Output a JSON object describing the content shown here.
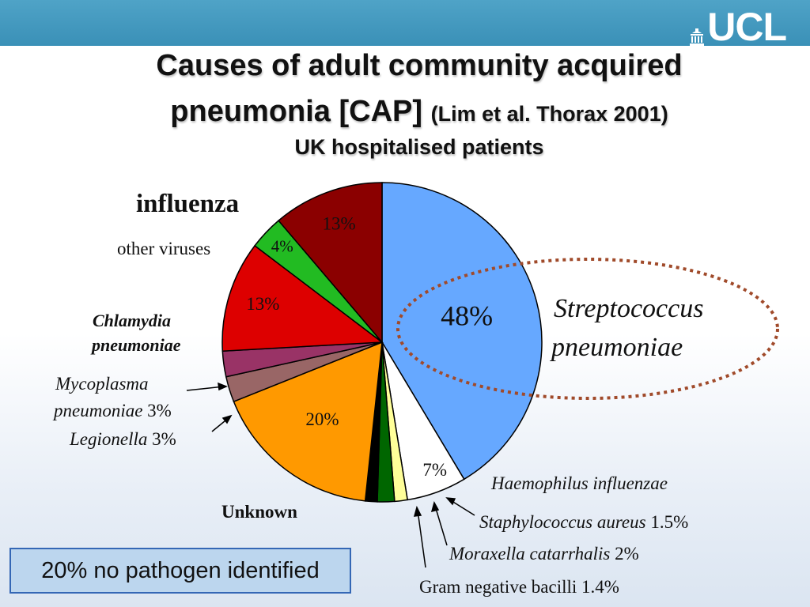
{
  "logo": {
    "text": "UCL",
    "icon": "portico-icon"
  },
  "title": {
    "line1": "Causes of adult community acquired",
    "line2_main": "pneumonia [CAP]",
    "line2_ref": "(Lim et al. Thorax 2001)",
    "line3": "UK hospitalised patients"
  },
  "chart_data": {
    "type": "pie",
    "slices": [
      {
        "label": "Streptococcus pneumoniae",
        "value": 48,
        "value_label": "48%",
        "color": "#66a8ff"
      },
      {
        "label": "Haemophilus influenzae",
        "value": 7,
        "value_label": "7%",
        "color": "#ffffff"
      },
      {
        "label": "Staphylococcus aureus",
        "value": 1.5,
        "value_label": "1.5%",
        "color": "#ffff99"
      },
      {
        "label": "Moraxella catarrhalis",
        "value": 2,
        "value_label": "2%",
        "color": "#006600"
      },
      {
        "label": "Gram negative bacilli",
        "value": 1.4,
        "value_label": "1.4%",
        "color": "#000000"
      },
      {
        "label": "Unknown",
        "value": 20,
        "value_label": "20%",
        "color": "#ff9900"
      },
      {
        "label": "Legionella",
        "value": 3,
        "value_label": "3%",
        "color": "#996666"
      },
      {
        "label": "Mycoplasma pneumoniae",
        "value": 3,
        "value_label": "3%",
        "color": "#993366"
      },
      {
        "label": "Chlamydia pneumoniae",
        "value": 13,
        "value_label": "13%",
        "color": "#dd0000"
      },
      {
        "label": "other viruses",
        "value": 4,
        "value_label": "4%",
        "color": "#22bb22"
      },
      {
        "label": "influenza",
        "value": 13,
        "value_label": "13%",
        "color": "#8b0000"
      }
    ]
  },
  "labels": {
    "influenza": "influenza",
    "other_viruses": "other viruses",
    "chlamydia_l1": "Chlamydia",
    "chlamydia_l2": "pneumoniae",
    "mycoplasma_l1": "Mycoplasma",
    "mycoplasma_l2_name": "pneumoniae",
    "mycoplasma_l2_pct": "3%",
    "legionella_name": "Legionella",
    "legionella_pct": "3%",
    "strep_l1": "Streptococcus",
    "strep_l2": "pneumoniae",
    "haemophilus": "Haemophilus influenzae",
    "staph_name": "Staphylococcus aureus",
    "staph_pct": "1.5%",
    "moraxella_name": "Moraxella catarrhalis",
    "moraxella_pct": "2%",
    "gram_neg": "Gram negative bacilli 1.4%",
    "unknown": "Unknown"
  },
  "footer_box": "20% no pathogen identified",
  "colors": {
    "topbar": "#3a90b7",
    "highlight_ellipse": "#a04a2a",
    "box_fill": "#bcd6ee",
    "box_border": "#3467b5"
  }
}
